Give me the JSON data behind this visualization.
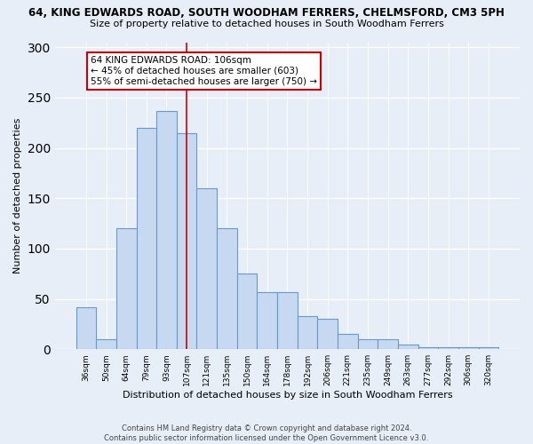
{
  "title": "64, KING EDWARDS ROAD, SOUTH WOODHAM FERRERS, CHELMSFORD, CM3 5PH",
  "subtitle": "Size of property relative to detached houses in South Woodham Ferrers",
  "xlabel": "Distribution of detached houses by size in South Woodham Ferrers",
  "ylabel": "Number of detached properties",
  "categories": [
    "36sqm",
    "50sqm",
    "64sqm",
    "79sqm",
    "93sqm",
    "107sqm",
    "121sqm",
    "135sqm",
    "150sqm",
    "164sqm",
    "178sqm",
    "192sqm",
    "206sqm",
    "221sqm",
    "235sqm",
    "249sqm",
    "263sqm",
    "277sqm",
    "292sqm",
    "306sqm",
    "320sqm"
  ],
  "values": [
    42,
    10,
    120,
    220,
    237,
    215,
    160,
    120,
    75,
    57,
    57,
    33,
    30,
    15,
    10,
    10,
    5,
    2,
    2,
    2,
    2
  ],
  "bar_color": "#c6d9f0",
  "bar_edge_color": "#6699cc",
  "vline_x": 5,
  "vline_color": "#cc0000",
  "annotation_text": "64 KING EDWARDS ROAD: 106sqm\n← 45% of detached houses are smaller (603)\n55% of semi-detached houses are larger (750) →",
  "annotation_box_edge_color": "#cc0000",
  "footer_line1": "Contains HM Land Registry data © Crown copyright and database right 2024.",
  "footer_line2": "Contains public sector information licensed under the Open Government Licence v3.0.",
  "bg_color": "#e8eef8",
  "ylim_max": 305,
  "yticks": [
    0,
    50,
    100,
    150,
    200,
    250,
    300
  ]
}
